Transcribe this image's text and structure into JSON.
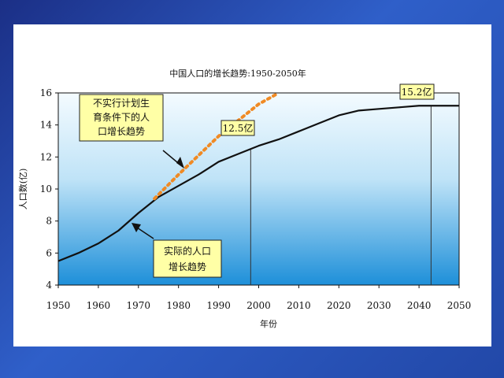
{
  "chart_data": {
    "type": "line",
    "title": "中国人口的增长趋势:1950-2050年",
    "xlabel": "年份",
    "ylabel": "人口数(亿)",
    "xlim": [
      1950,
      2050
    ],
    "ylim": [
      4,
      16
    ],
    "x_ticks": [
      1950,
      1960,
      1970,
      1980,
      1990,
      2000,
      2010,
      2020,
      2030,
      2040,
      2050
    ],
    "y_ticks": [
      4,
      6,
      8,
      10,
      12,
      14,
      16
    ],
    "series": [
      {
        "line_style": "solid",
        "color": "#111111",
        "x": [
          1950,
          1955,
          1960,
          1965,
          1970,
          1975,
          1980,
          1985,
          1990,
          1995,
          2000,
          2005,
          2010,
          2015,
          2020,
          2025,
          2030,
          2035,
          2040,
          2045,
          2050
        ],
        "y": [
          5.5,
          6.0,
          6.6,
          7.4,
          8.5,
          9.5,
          10.2,
          10.9,
          11.7,
          12.2,
          12.7,
          13.1,
          13.6,
          14.1,
          14.6,
          14.9,
          15.0,
          15.1,
          15.2,
          15.2,
          15.2
        ]
      },
      {
        "line_style": "dotted",
        "color": "#f08a24",
        "x": [
          1974,
          1980,
          1990,
          2000,
          2005
        ],
        "y": [
          9.4,
          10.9,
          13.3,
          15.3,
          16.0
        ]
      }
    ],
    "vlines": [
      1998,
      2043
    ],
    "annotations": [
      {
        "text": "不实行计划生育条件下的人口增长趋势",
        "lines": [
          "不实行计划生",
          "育条件下的人",
          "口增长趋势"
        ],
        "arrow_to": [
          1983,
          11.0
        ]
      },
      {
        "text": "实际的人口增长趋势",
        "lines": [
          "实际的人口",
          "增长趋势"
        ],
        "arrow_to": [
          1969,
          8.5
        ]
      },
      {
        "text": "12.5亿",
        "points_to": [
          1998,
          12.5
        ]
      },
      {
        "text": "15.2亿",
        "points_to": [
          2043,
          15.2
        ]
      }
    ],
    "grid": false
  }
}
